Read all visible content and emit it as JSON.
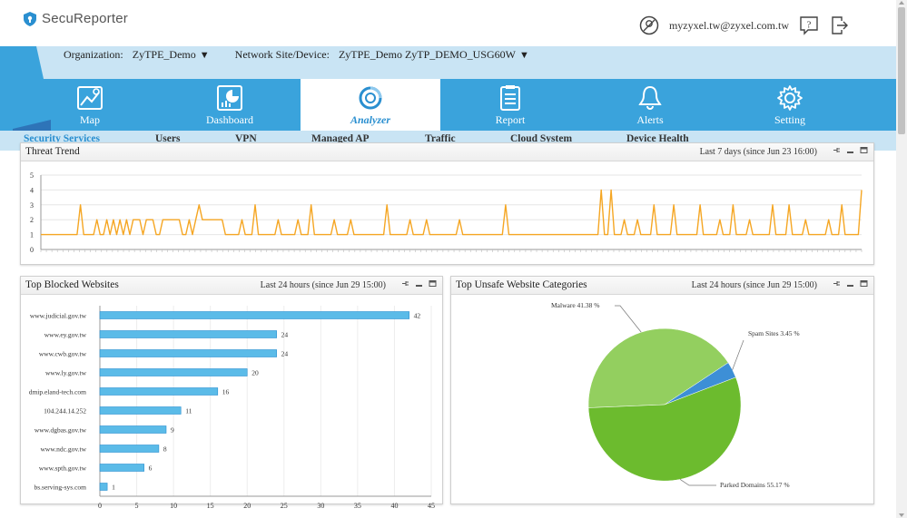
{
  "app": {
    "name": "SecuReporter"
  },
  "user": {
    "email": "myzyxel.tw@zyxel.com.tw"
  },
  "org": {
    "org_label": "Organization:",
    "org_value": "ZyTPE_Demo",
    "site_label": "Network Site/Device:",
    "site_value": "ZyTPE_Demo ZyTP_DEMO_USG60W"
  },
  "nav": [
    {
      "label": "Map",
      "icon": "map-icon"
    },
    {
      "label": "Dashboard",
      "icon": "dashboard-icon"
    },
    {
      "label": "Analyzer",
      "icon": "analyzer-icon",
      "active": true
    },
    {
      "label": "Report",
      "icon": "report-icon"
    },
    {
      "label": "Alerts",
      "icon": "bell-icon"
    },
    {
      "label": "Setting",
      "icon": "gear-icon"
    }
  ],
  "subtabs": [
    "Security Services",
    "Users",
    "VPN",
    "Managed AP",
    "Traffic",
    "Cloud System",
    "Device Health"
  ],
  "colors": {
    "nav_bg": "#3aa3dc",
    "orgbar_bg": "#c9e4f4",
    "line": "#f5a623",
    "bar": "#5bbbe8",
    "pie_malware": "#93cf5f",
    "pie_parked": "#6cbb2e",
    "pie_spam": "#3d8fd6"
  },
  "threat_trend": {
    "title": "Threat Trend",
    "range": "Last 7 days (since Jun 23 16:00)"
  },
  "blocked": {
    "title": "Top Blocked Websites",
    "range": "Last 24 hours (since Jun 29 15:00)"
  },
  "unsafe": {
    "title": "Top Unsafe Website Categories",
    "range": "Last 24 hours (since Jun 29 15:00)"
  },
  "chart_data": [
    {
      "type": "line",
      "title": "",
      "ylim": [
        0,
        5
      ],
      "yticks": [
        "0",
        "1",
        "2",
        "3",
        "4",
        "5"
      ],
      "grid": true,
      "series": [
        {
          "values": [
            1,
            1,
            1,
            1,
            1,
            1,
            1,
            1,
            1,
            1,
            1,
            1,
            3,
            1,
            1,
            1,
            1,
            2,
            1,
            1,
            2,
            1,
            2,
            1,
            2,
            1,
            2,
            1,
            2,
            2,
            2,
            1,
            2,
            2,
            2,
            1,
            1,
            2,
            2,
            2,
            2,
            2,
            2,
            1,
            1,
            2,
            1,
            2,
            3,
            2,
            2,
            2,
            2,
            2,
            2,
            2,
            1,
            1,
            1,
            1,
            1,
            2,
            1,
            1,
            1,
            3,
            1,
            1,
            1,
            1,
            1,
            1,
            2,
            1,
            1,
            1,
            1,
            1,
            2,
            1,
            1,
            1,
            3,
            1,
            1,
            1,
            1,
            1,
            1,
            2,
            1,
            1,
            1,
            1,
            2,
            1,
            1,
            1,
            1,
            1,
            1,
            1,
            1,
            1,
            1,
            3,
            1,
            1,
            1,
            1,
            1,
            1,
            2,
            1,
            1,
            1,
            1,
            2,
            1,
            1,
            1,
            1,
            1,
            1,
            1,
            1,
            1,
            2,
            1,
            1,
            1,
            1,
            1,
            1,
            1,
            1,
            1,
            1,
            1,
            1,
            1,
            3,
            1,
            1,
            1,
            1,
            1,
            1,
            1,
            1,
            1,
            1,
            1,
            1,
            1,
            1,
            1,
            1,
            1,
            1,
            1,
            1,
            1,
            1,
            1,
            1,
            1,
            1,
            1,
            1,
            4,
            1,
            1,
            4,
            1,
            1,
            1,
            2,
            1,
            1,
            1,
            2,
            1,
            1,
            1,
            1,
            3,
            1,
            1,
            1,
            1,
            1,
            3,
            1,
            1,
            1,
            1,
            1,
            1,
            1,
            3,
            1,
            1,
            1,
            1,
            1,
            2,
            1,
            1,
            1,
            3,
            1,
            1,
            1,
            1,
            2,
            1,
            1,
            1,
            1,
            1,
            1,
            3,
            1,
            1,
            1,
            1,
            3,
            1,
            1,
            1,
            1,
            2,
            1,
            1,
            1,
            1,
            1,
            1,
            2,
            1,
            1,
            1,
            3,
            1,
            1,
            1,
            1,
            1,
            4
          ]
        }
      ]
    },
    {
      "type": "bar",
      "orientation": "horizontal",
      "categories": [
        "www.judicial.gov.tw",
        "www.ey.gov.tw",
        "www.cwb.gov.tw",
        "www.ly.gov.tw",
        "dmip.eland-tech.com",
        "104.244.14.252",
        "www.dgbas.gov.tw",
        "www.ndc.gov.tw",
        "www.spth.gov.tw",
        "bs.serving-sys.com"
      ],
      "values": [
        42,
        24,
        24,
        20,
        16,
        11,
        9,
        8,
        6,
        1
      ],
      "xlim": [
        0,
        45
      ],
      "xticks": [
        0,
        5,
        10,
        15,
        20,
        25,
        30,
        35,
        40,
        45
      ],
      "grid": true
    },
    {
      "type": "pie",
      "labels": [
        "Malware 41.38 %",
        "Spam Sites 3.45 %",
        "Parked Domains 55.17 %"
      ],
      "values": [
        41.38,
        3.45,
        55.17
      ]
    }
  ]
}
